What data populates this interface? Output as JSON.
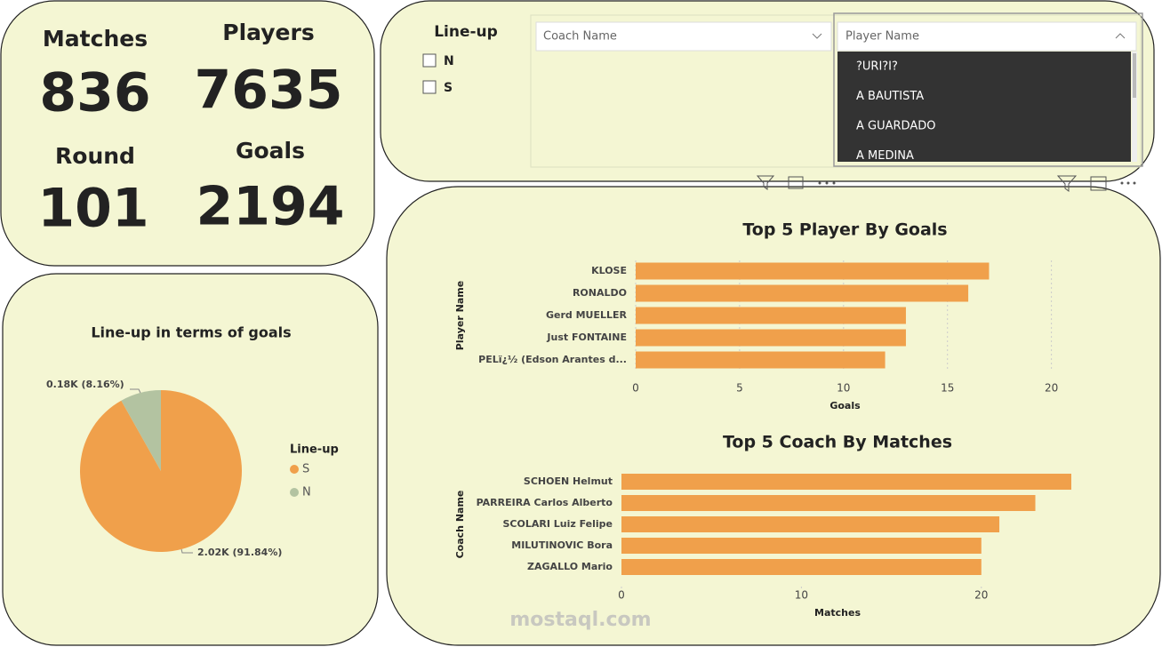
{
  "cards": [
    {
      "label": "Matches",
      "value": 836
    },
    {
      "label": "Players",
      "value": 7635
    },
    {
      "label": "Round",
      "value": 101
    },
    {
      "label": "Goals",
      "value": 2194
    }
  ],
  "slicer": {
    "title": "Line-up",
    "options": [
      "N",
      "S"
    ]
  },
  "dropdowns": [
    {
      "placeholder": "Coach Name"
    },
    {
      "placeholder": "Player Name",
      "items": [
        "?URI?I?",
        "A BAUTISTA",
        "A GUARDADO",
        "A MEDINA"
      ]
    }
  ],
  "watermark": "mostaql.com",
  "chart_data": [
    {
      "type": "pie",
      "title": "Line-up in terms of goals",
      "legend_title": "Line-up",
      "legend": "right",
      "categories": [
        "S",
        "N"
      ],
      "values": [
        2015,
        179
      ],
      "value_labels": [
        "2.02K (91.84%)",
        "0.18K (8.16%)"
      ],
      "colors": [
        "#f0a04b",
        "#b3c3a1"
      ]
    },
    {
      "type": "bar",
      "horizontal": true,
      "title": "Top 5 Player By Goals",
      "xlabel": "Goals",
      "ylabel": "Player Name",
      "categories": [
        "KLOSE",
        "RONALDO",
        "Gerd MUELLER",
        "Just FONTAINE",
        "PELï¿½ (Edson Arantes d..."
      ],
      "values": [
        17,
        16,
        13,
        13,
        12
      ],
      "color": "#f0a04b",
      "xlim": [
        0,
        21
      ],
      "xticks": [
        0,
        5,
        10,
        15,
        20
      ],
      "grid": true
    },
    {
      "type": "bar",
      "horizontal": true,
      "title": "Top 5 Coach By Matches",
      "xlabel": "Matches",
      "ylabel": "Coach Name",
      "categories": [
        "SCHOEN Helmut",
        "PARREIRA Carlos Alberto",
        "SCOLARI Luiz Felipe",
        "MILUTINOVIC Bora",
        "ZAGALLO Mario"
      ],
      "values": [
        25,
        23,
        21,
        20,
        20
      ],
      "color": "#f0a04b",
      "xlim": [
        0,
        25
      ],
      "xticks": [
        0,
        10,
        20
      ],
      "grid": false
    }
  ]
}
